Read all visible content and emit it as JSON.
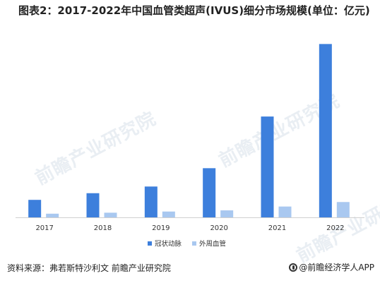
{
  "title": "图表2：2017-2022年中国血管类超声(IVUS)细分市场规模(单位：亿元)",
  "source": "资料来源：弗若斯特沙利文 前瞻产业研究院",
  "brand": "@前瞻经济学人APP",
  "watermark_text": "前瞻产业研究院",
  "colors": {
    "series1": "#3d7fdc",
    "series2": "#a9c8f0"
  },
  "chart_data": {
    "type": "bar",
    "title": "图表2：2017-2022年中国血管类超声(IVUS)细分市场规模(单位：亿元)",
    "xlabel": "",
    "ylabel": "",
    "ylim": [
      0,
      10.5
    ],
    "grid": false,
    "legend": "bottom-center",
    "categories": [
      "2017",
      "2018",
      "2019",
      "2020",
      "2021",
      "2022"
    ],
    "series": [
      {
        "name": "冠状动脉",
        "values": [
          1.05,
          1.45,
          1.85,
          2.95,
          6.05,
          10.4
        ]
      },
      {
        "name": "外周血管",
        "values": [
          0.22,
          0.28,
          0.35,
          0.42,
          0.65,
          0.92
        ]
      }
    ]
  }
}
